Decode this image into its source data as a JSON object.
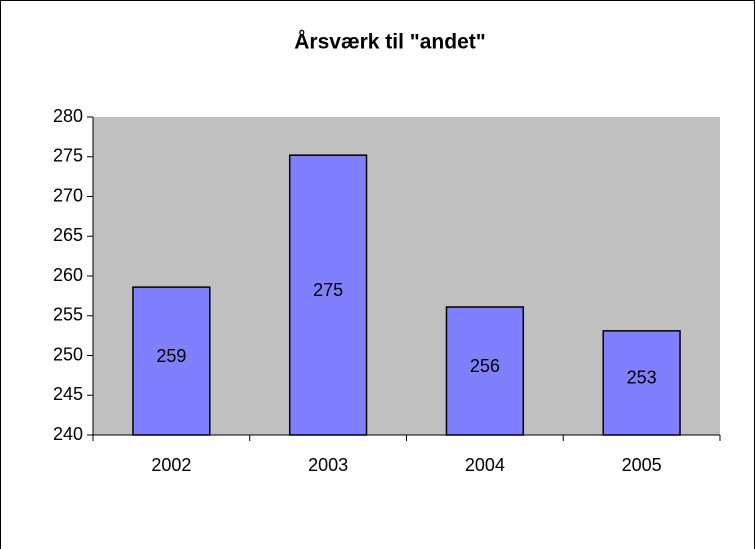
{
  "chart_data": {
    "type": "bar",
    "title": "Årsværk til \"andet\"",
    "categories": [
      "2002",
      "2003",
      "2004",
      "2005"
    ],
    "values": [
      258.6,
      275.2,
      256.1,
      253.1
    ],
    "value_labels": [
      "259",
      "275",
      "256",
      "253"
    ],
    "color": "#8080ff",
    "plot_background": "#c0c0c0",
    "ylim": [
      240,
      280
    ],
    "yticks": [
      240,
      245,
      250,
      255,
      260,
      265,
      270,
      275,
      280
    ],
    "grid": false
  }
}
